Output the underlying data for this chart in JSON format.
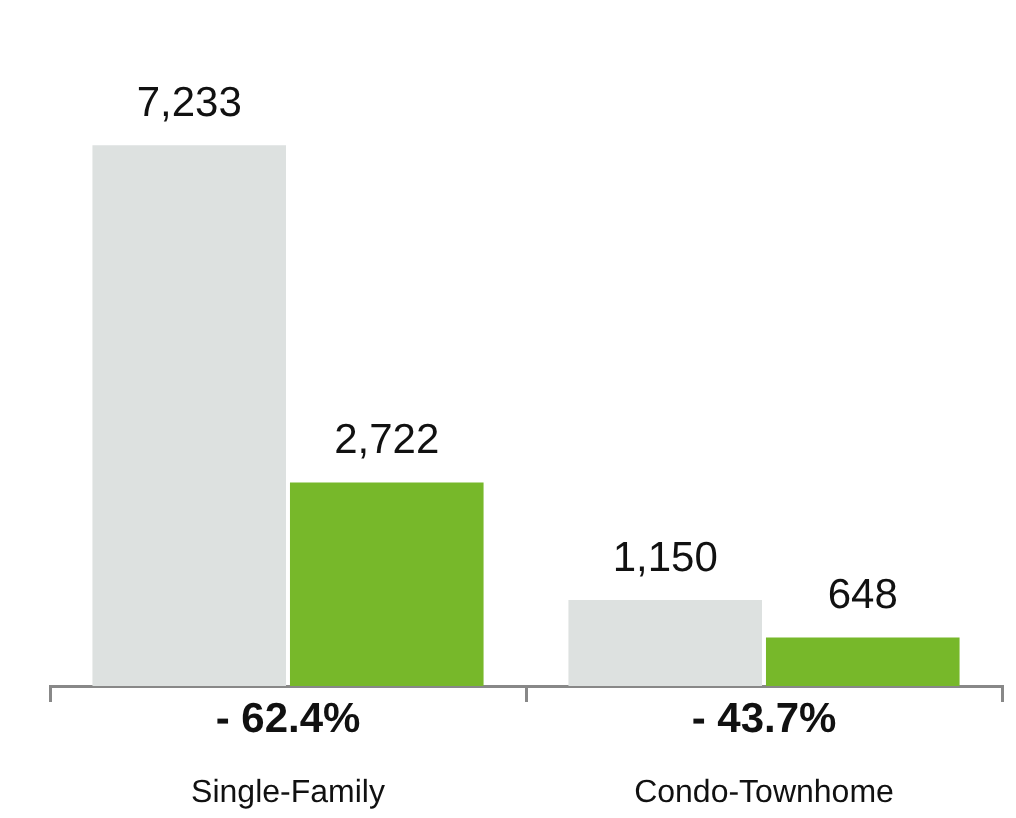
{
  "chart_data": {
    "type": "bar",
    "categories": [
      "Single-Family",
      "Condo-Townhome"
    ],
    "series": [
      {
        "color": "#dde1e0",
        "values": [
          7233,
          1150
        ],
        "value_labels": [
          "7,233",
          "1,150"
        ]
      },
      {
        "color": "#77b82a",
        "values": [
          2722,
          648
        ],
        "value_labels": [
          "2,722",
          "648"
        ]
      }
    ],
    "annotations": [
      "- 62.4%",
      "- 43.7%"
    ]
  }
}
